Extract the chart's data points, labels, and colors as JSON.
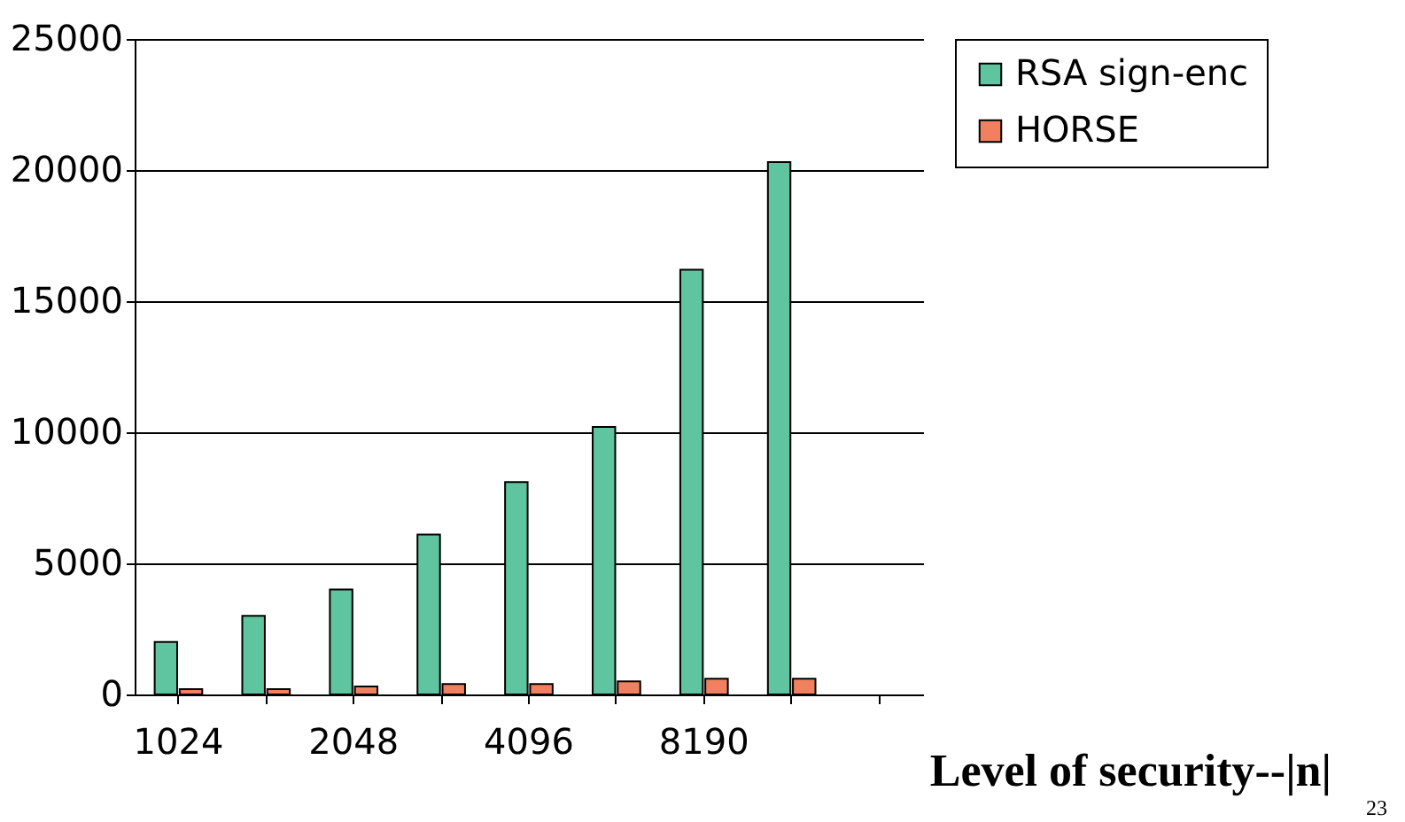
{
  "chart_data": {
    "type": "bar",
    "xlabel": "Level of security--|n|",
    "categories": [
      "1024",
      null,
      "2048",
      null,
      "4096",
      null,
      "8190",
      null,
      null
    ],
    "series": [
      {
        "name": "RSA sign-enc",
        "color": "#5fc4a0",
        "values": [
          2000,
          3000,
          4000,
          6100,
          8100,
          10200,
          16200,
          20300,
          null
        ]
      },
      {
        "name": "HORSE",
        "color": "#f08060",
        "values": [
          200,
          200,
          300,
          400,
          400,
          500,
          600,
          600,
          null
        ]
      }
    ],
    "ylim": [
      0,
      25000
    ],
    "yticks": [
      0,
      5000,
      10000,
      15000,
      20000,
      25000
    ],
    "grid": "y",
    "legend": "right",
    "annotations": [
      "23"
    ]
  }
}
